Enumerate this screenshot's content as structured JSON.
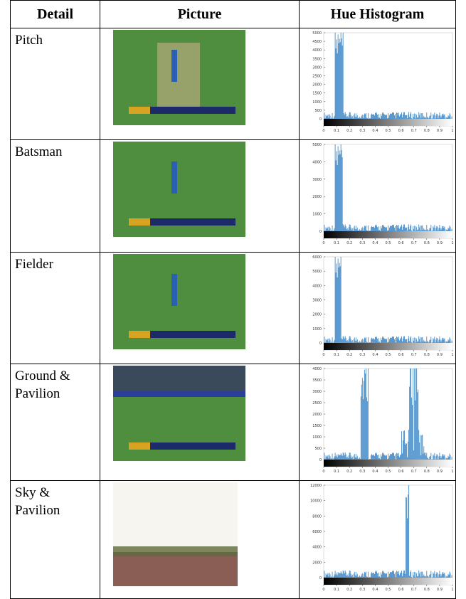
{
  "header": [
    "Detail",
    "Picture",
    "Hue Histogram"
  ],
  "rows": [
    {
      "detail": "Pitch",
      "histogram": {
        "yticks": [
          5000,
          4500,
          4000,
          3500,
          3000,
          2500,
          2000,
          1500,
          1000,
          500,
          0
        ],
        "xticks": [
          0,
          0.1,
          0.2,
          0.3,
          0.4,
          0.5,
          0.6,
          0.7,
          0.8,
          0.9,
          1
        ]
      }
    },
    {
      "detail": "Batsman",
      "histogram": {
        "yticks": [
          5000,
          4000,
          3000,
          2000,
          1000,
          0
        ],
        "xticks": [
          0,
          0.1,
          0.2,
          0.3,
          0.4,
          0.5,
          0.6,
          0.7,
          0.8,
          0.9,
          1
        ]
      }
    },
    {
      "detail": "Fielder",
      "histogram": {
        "yticks": [
          6000,
          5000,
          4000,
          3000,
          2000,
          1000,
          0
        ],
        "xticks": [
          0,
          0.1,
          0.2,
          0.3,
          0.4,
          0.5,
          0.6,
          0.7,
          0.8,
          0.9,
          1
        ]
      }
    },
    {
      "detail": "Ground & Pavilion",
      "histogram": {
        "yticks": [
          4000,
          3500,
          3000,
          2500,
          2000,
          1500,
          1000,
          500,
          0
        ],
        "xticks": [
          0,
          0.1,
          0.2,
          0.3,
          0.4,
          0.5,
          0.6,
          0.7,
          0.8,
          0.9,
          1
        ]
      }
    },
    {
      "detail": "Sky & Pavilion",
      "histogram": {
        "yticks": [
          12000,
          10000,
          8000,
          6000,
          4000,
          2000,
          0
        ],
        "xticks": [
          0,
          0.1,
          0.2,
          0.3,
          0.4,
          0.5,
          0.6,
          0.7,
          0.8,
          0.9,
          1
        ]
      }
    }
  ]
}
